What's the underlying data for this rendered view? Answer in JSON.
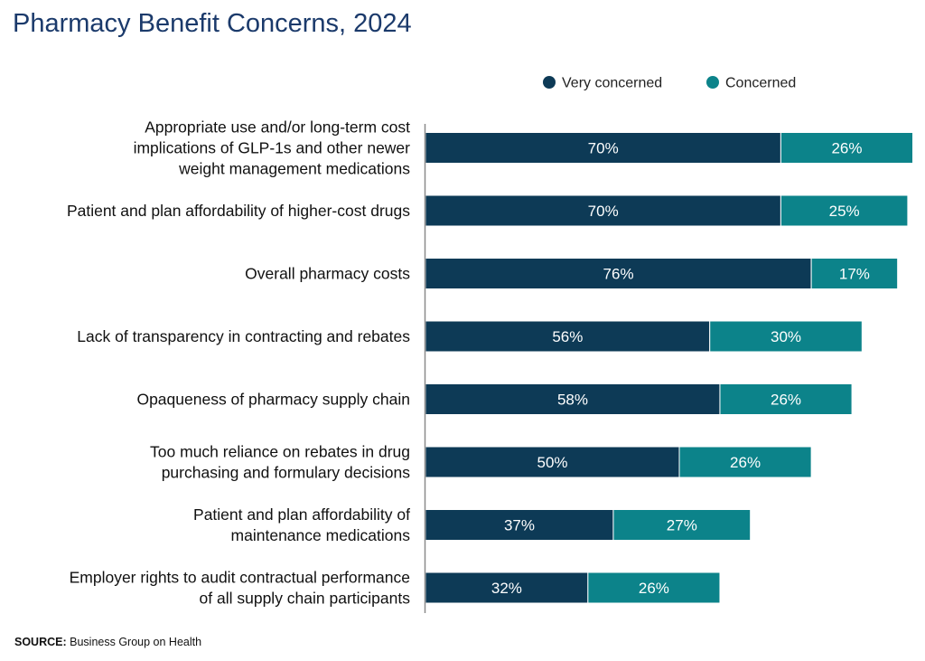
{
  "colors": {
    "very_concerned": "#0d3a56",
    "concerned": "#0c838a",
    "title": "#1b3a6b",
    "axis": "#8a8a8a",
    "label_text": "#111111",
    "bar_text": "#ffffff"
  },
  "source": {
    "label": "SOURCE:",
    "text": "Business Group on Health"
  },
  "chart_data": {
    "type": "bar",
    "orientation": "horizontal",
    "stacked": true,
    "title": "Pharmacy Benefit Concerns, 2024",
    "legend_position": "top-right",
    "grid": false,
    "xlim": [
      0,
      100
    ],
    "value_format": "percent",
    "categories": [
      [
        "Appropriate use and/or long-term cost",
        "implications of GLP-1s and other newer",
        "weight management medications"
      ],
      [
        "Patient and plan affordability of higher-cost drugs"
      ],
      [
        "Overall pharmacy costs"
      ],
      [
        "Lack of transparency in contracting and rebates"
      ],
      [
        "Opaqueness of pharmacy supply chain"
      ],
      [
        "Too much reliance on rebates in drug",
        "purchasing and formulary decisions"
      ],
      [
        "Patient and plan affordability of",
        "maintenance medications"
      ],
      [
        "Employer rights to audit contractual performance",
        "of all supply chain participants"
      ]
    ],
    "series": [
      {
        "name": "Very concerned",
        "values": [
          70,
          70,
          76,
          56,
          58,
          50,
          37,
          32
        ]
      },
      {
        "name": "Concerned",
        "values": [
          26,
          25,
          17,
          30,
          26,
          26,
          27,
          26
        ]
      }
    ]
  }
}
